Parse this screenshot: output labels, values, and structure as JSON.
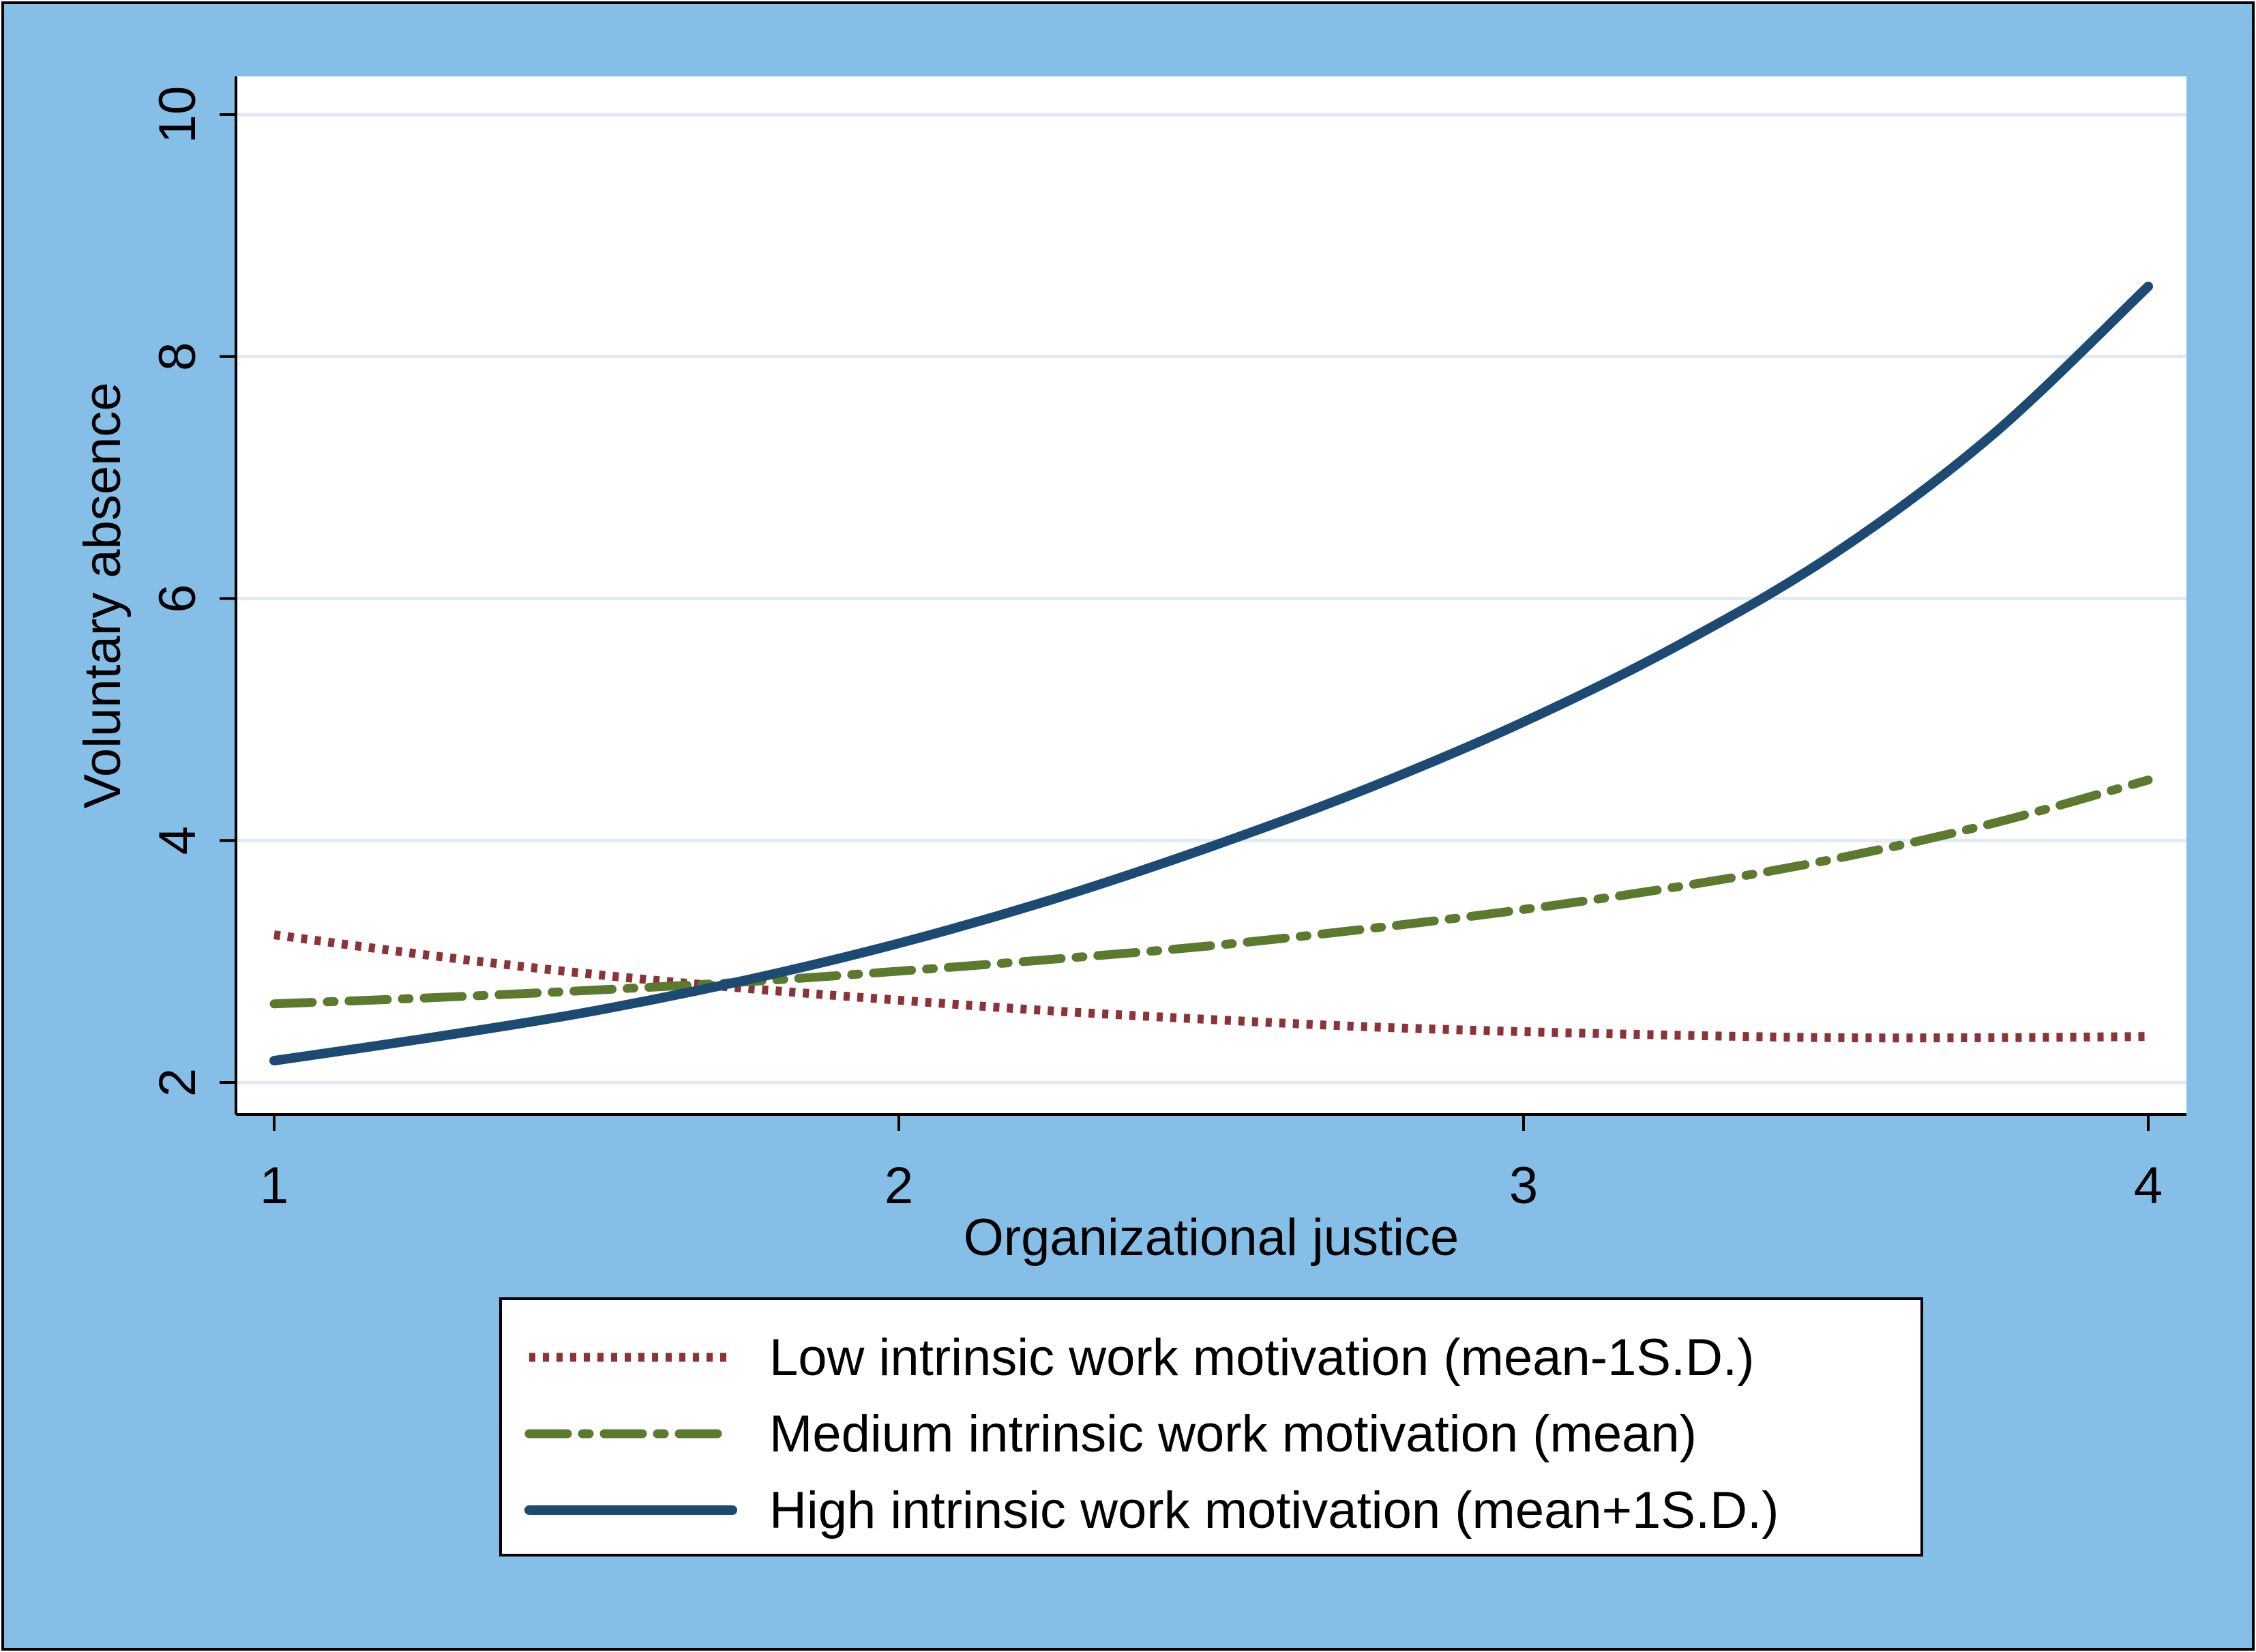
{
  "chart_data": {
    "type": "line",
    "title": "",
    "xlabel": "Organizational justice",
    "ylabel": "Voluntary absence",
    "xlim": [
      1,
      4
    ],
    "ylim": [
      2,
      10
    ],
    "xticks": [
      1,
      2,
      3,
      4
    ],
    "yticks": [
      2,
      4,
      6,
      8,
      10
    ],
    "grid": true,
    "legend_position": "bottom",
    "colors": {
      "outer_background": "#85BFE8",
      "plot_background": "#FFFFFF",
      "gridline": "#E1EAF0"
    },
    "x": [
      1.0,
      1.25,
      1.5,
      1.75,
      2.0,
      2.25,
      2.5,
      2.75,
      3.0,
      3.25,
      3.5,
      3.75,
      4.0
    ],
    "series": [
      {
        "name": "Low intrinsic work motivation (mean-1S.D.)",
        "color": "#8B3438",
        "style": "dotted",
        "values": [
          3.22,
          3.05,
          2.9,
          2.78,
          2.68,
          2.59,
          2.52,
          2.46,
          2.42,
          2.39,
          2.37,
          2.37,
          2.38
        ]
      },
      {
        "name": "Medium intrinsic work motivation (mean)",
        "color": "#5B7A2E",
        "style": "dash-dot",
        "values": [
          2.65,
          2.7,
          2.76,
          2.83,
          2.92,
          3.02,
          3.13,
          3.27,
          3.43,
          3.62,
          3.85,
          4.14,
          4.5
        ]
      },
      {
        "name": "High intrinsic work motivation (mean+1S.D.)",
        "color": "#1C4A72",
        "style": "solid",
        "values": [
          2.18,
          2.37,
          2.58,
          2.84,
          3.15,
          3.52,
          3.95,
          4.43,
          4.98,
          5.62,
          6.38,
          7.35,
          8.58
        ]
      }
    ]
  }
}
